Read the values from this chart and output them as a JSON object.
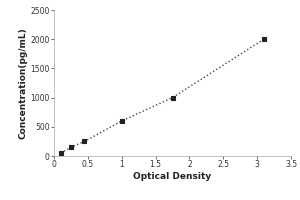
{
  "x_data": [
    0.1,
    0.25,
    0.45,
    1.0,
    1.75,
    3.1
  ],
  "y_data": [
    50,
    150,
    250,
    600,
    1000,
    2000
  ],
  "xlabel": "Optical Density",
  "ylabel": "Concentration(pg/mL)",
  "xlim": [
    0,
    3.5
  ],
  "ylim": [
    0,
    2500
  ],
  "xticks": [
    0,
    0.5,
    1,
    1.5,
    2,
    2.5,
    3,
    3.5
  ],
  "xticklabels": [
    "0",
    "0.5",
    "1",
    "1.5",
    "2",
    "2.5",
    "3",
    "3.5"
  ],
  "yticks": [
    0,
    500,
    1000,
    1500,
    2000,
    2500
  ],
  "yticklabels": [
    "0",
    "500",
    "1000",
    "1500",
    "2000",
    "2500"
  ],
  "line_color": "#444444",
  "marker_color": "#222222",
  "background_color": "#ffffff",
  "plot_bg_color": "#ffffff",
  "axis_fontsize": 6.5,
  "tick_fontsize": 5.5,
  "border_color": "#aaaaaa"
}
